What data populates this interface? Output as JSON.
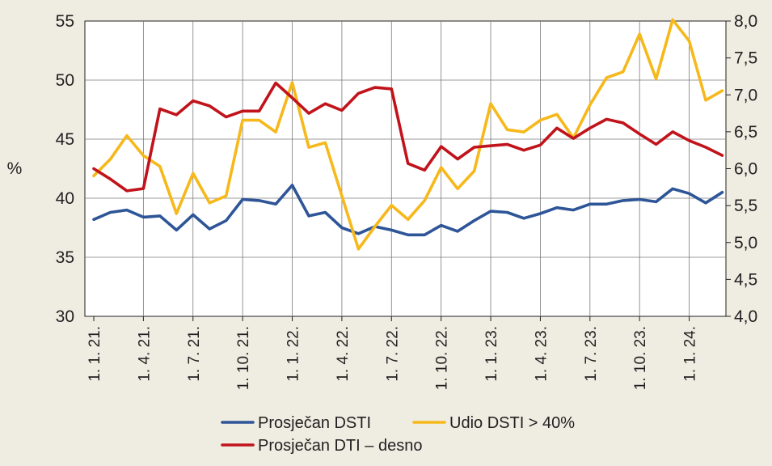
{
  "chart_data": {
    "type": "line",
    "ylabel_left": "%",
    "ylim_left": [
      30,
      55
    ],
    "yticks_left": [
      "30",
      "35",
      "40",
      "45",
      "50",
      "55"
    ],
    "ylim_right": [
      4.0,
      8.0
    ],
    "yticks_right": [
      "4,0",
      "4,5",
      "5,0",
      "5,5",
      "6,0",
      "6,5",
      "7,0",
      "7,5",
      "8,0"
    ],
    "x_tick_labels": [
      "1. 1. 21.",
      "1. 4. 21.",
      "1. 7. 21.",
      "1. 10. 21.",
      "1. 1. 22.",
      "1. 4. 22.",
      "1. 7. 22.",
      "1. 10. 22.",
      "1. 1. 23.",
      "1. 4. 23.",
      "1. 7. 23.",
      "1. 10. 23.",
      "1. 1. 24."
    ],
    "n_points": 39,
    "series": [
      {
        "name": "Prosječan DSTI",
        "axis": "left",
        "color": "#2e5597",
        "values": [
          38.2,
          38.8,
          39.0,
          38.4,
          38.5,
          37.3,
          38.6,
          37.4,
          38.1,
          39.9,
          39.8,
          39.5,
          41.1,
          38.5,
          38.8,
          37.5,
          37.0,
          37.6,
          37.3,
          36.9,
          36.9,
          37.7,
          37.2,
          38.1,
          38.9,
          38.8,
          38.3,
          38.7,
          39.2,
          39.0,
          39.5,
          39.5,
          39.8,
          39.9,
          39.7,
          40.8,
          40.4,
          39.6,
          40.5
        ]
      },
      {
        "name": "Udio DSTI > 40%",
        "axis": "left",
        "color": "#f6b81a",
        "values": [
          41.9,
          43.3,
          45.3,
          43.6,
          42.7,
          38.7,
          42.1,
          39.6,
          40.2,
          46.6,
          46.6,
          45.6,
          49.8,
          44.3,
          44.7,
          40.2,
          35.7,
          37.6,
          39.4,
          38.2,
          39.8,
          42.6,
          40.8,
          42.3,
          48.0,
          45.8,
          45.6,
          46.6,
          47.1,
          45.1,
          47.9,
          50.2,
          50.7,
          53.9,
          50.1,
          55.1,
          53.3,
          48.3,
          49.1
        ]
      },
      {
        "name": "Prosječan DTI – desno",
        "axis": "right",
        "color": "#c1131b",
        "values": [
          6.0,
          5.86,
          5.7,
          5.73,
          6.81,
          6.73,
          6.92,
          6.85,
          6.7,
          6.78,
          6.78,
          7.16,
          6.96,
          6.75,
          6.88,
          6.79,
          7.02,
          7.1,
          7.08,
          6.07,
          5.98,
          6.3,
          6.13,
          6.29,
          6.31,
          6.33,
          6.25,
          6.32,
          6.55,
          6.41,
          6.55,
          6.67,
          6.62,
          6.47,
          6.33,
          6.5,
          6.38,
          6.29,
          6.18
        ]
      }
    ],
    "legend": {
      "items": [
        "Prosječan DSTI",
        "Udio DSTI > 40%",
        "Prosječan DTI – desno"
      ],
      "placement": "bottom"
    },
    "grid": "vertical"
  }
}
